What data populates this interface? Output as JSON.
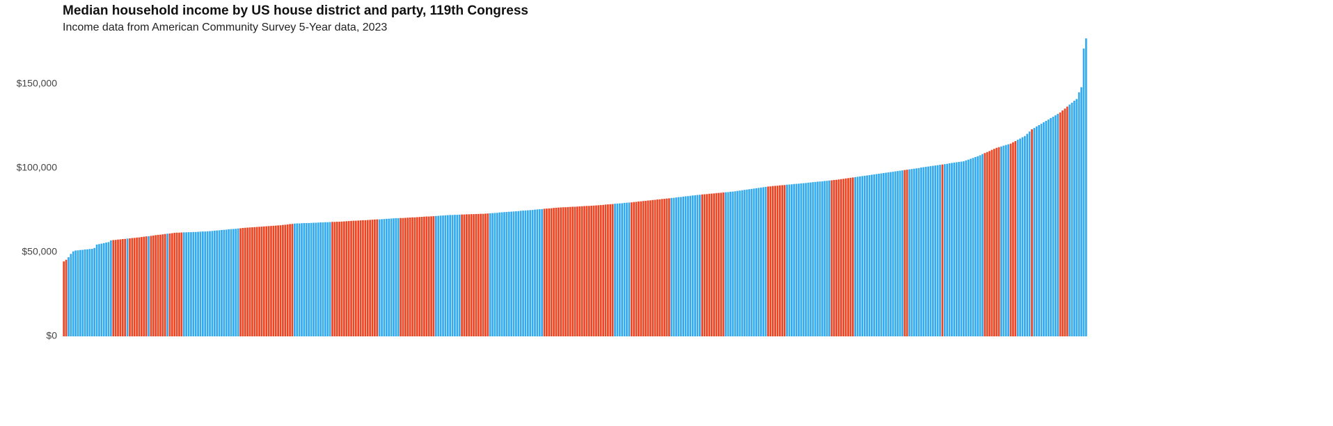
{
  "chart_data": {
    "type": "bar",
    "title": "Median household income by US house district and party, 119th Congress",
    "subtitle": "Income data from American Community Survey 5-Year data, 2023",
    "ylim": [
      0,
      180000
    ],
    "yticks": [
      {
        "value": 0,
        "label": "$0"
      },
      {
        "value": 50000,
        "label": "$50,000"
      },
      {
        "value": 100000,
        "label": "$100,000"
      },
      {
        "value": 150000,
        "label": "$150,000"
      }
    ],
    "grid": false,
    "values": [
      44500,
      45500,
      47000,
      49000,
      50500,
      51000,
      51100,
      51300,
      51400,
      51600,
      51700,
      51900,
      52000,
      52500,
      54500,
      54800,
      55100,
      55400,
      55700,
      56000,
      57000,
      57200,
      57300,
      57500,
      57600,
      57800,
      57900,
      58100,
      58200,
      58400,
      58500,
      58700,
      58800,
      59000,
      59200,
      59400,
      59500,
      59700,
      59900,
      60100,
      60300,
      60400,
      60600,
      60800,
      61000,
      61100,
      61300,
      61500,
      61600,
      61600,
      61700,
      61800,
      61800,
      61900,
      61900,
      62000,
      62000,
      62100,
      62200,
      62300,
      62300,
      62400,
      62500,
      62600,
      62800,
      62900,
      63000,
      63200,
      63300,
      63400,
      63600,
      63700,
      63800,
      63900,
      64100,
      64200,
      64400,
      64500,
      64600,
      64700,
      64800,
      64900,
      65000,
      65100,
      65200,
      65300,
      65400,
      65500,
      65600,
      65700,
      65800,
      65900,
      66000,
      66200,
      66300,
      66500,
      66700,
      66800,
      67000,
      67100,
      67100,
      67200,
      67300,
      67300,
      67300,
      67400,
      67500,
      67500,
      67600,
      67700,
      67700,
      67800,
      67800,
      67900,
      68000,
      68000,
      68100,
      68100,
      68200,
      68300,
      68400,
      68500,
      68600,
      68700,
      68700,
      68800,
      68900,
      69000,
      69000,
      69100,
      69200,
      69300,
      69400,
      69500,
      69500,
      69600,
      69700,
      69800,
      69900,
      70000,
      70100,
      70200,
      70200,
      70300,
      70300,
      70400,
      70500,
      70600,
      70700,
      70700,
      70800,
      70900,
      71000,
      71100,
      71200,
      71200,
      71300,
      71400,
      71500,
      71600,
      71700,
      71800,
      71900,
      72000,
      72100,
      72100,
      72200,
      72200,
      72300,
      72400,
      72400,
      72500,
      72500,
      72600,
      72600,
      72700,
      72700,
      72800,
      72800,
      72900,
      73000,
      73100,
      73200,
      73300,
      73400,
      73600,
      73700,
      73800,
      73900,
      74000,
      74100,
      74200,
      74300,
      74400,
      74600,
      74700,
      74800,
      74900,
      75000,
      75100,
      75300,
      75400,
      75500,
      75600,
      75800,
      75900,
      76000,
      76100,
      76300,
      76400,
      76500,
      76600,
      76700,
      76700,
      76800,
      76900,
      77000,
      77000,
      77100,
      77200,
      77300,
      77400,
      77500,
      77500,
      77600,
      77700,
      77800,
      77900,
      78000,
      78100,
      78300,
      78400,
      78500,
      78600,
      78800,
      78900,
      79000,
      79100,
      79300,
      79400,
      79500,
      79600,
      79800,
      79900,
      80100,
      80200,
      80400,
      80500,
      80700,
      80800,
      81000,
      81100,
      81300,
      81400,
      81600,
      81700,
      81900,
      82000,
      82200,
      82300,
      82500,
      82700,
      82800,
      83000,
      83200,
      83300,
      83500,
      83700,
      83800,
      84000,
      84100,
      84300,
      84400,
      84500,
      84700,
      84800,
      84900,
      85100,
      85200,
      85300,
      85500,
      85600,
      85700,
      85900,
      86000,
      86200,
      86400,
      86600,
      86800,
      87000,
      87200,
      87400,
      87600,
      87800,
      88000,
      88200,
      88400,
      88600,
      88800,
      89000,
      89100,
      89300,
      89400,
      89500,
      89700,
      89800,
      89900,
      90100,
      90200,
      90300,
      90500,
      90600,
      90700,
      90900,
      91000,
      91100,
      91300,
      91400,
      91600,
      91700,
      91900,
      92000,
      92100,
      92300,
      92400,
      92600,
      92700,
      92900,
      93000,
      93200,
      93400,
      93600,
      93800,
      94000,
      94200,
      94400,
      94600,
      94800,
      95000,
      95200,
      95400,
      95600,
      95800,
      96000,
      96200,
      96400,
      96600,
      96800,
      97000,
      97200,
      97400,
      97600,
      97800,
      98000,
      98200,
      98400,
      98600,
      98800,
      99000,
      99200,
      99400,
      99600,
      99800,
      100000,
      100300,
      100500,
      100700,
      100900,
      101100,
      101300,
      101500,
      101700,
      101900,
      102100,
      102300,
      102500,
      102800,
      103000,
      103200,
      103400,
      103600,
      103800,
      104000,
      104500,
      105000,
      105500,
      106000,
      106500,
      107000,
      107600,
      108300,
      108900,
      109500,
      110100,
      110800,
      111400,
      112000,
      112400,
      112800,
      113300,
      113700,
      114100,
      114500,
      115300,
      116000,
      116800,
      117500,
      118300,
      119000,
      120300,
      121700,
      123000,
      123800,
      124700,
      125500,
      126300,
      127200,
      128000,
      128800,
      129700,
      130500,
      131300,
      132200,
      133000,
      134200,
      135300,
      136500,
      137700,
      138800,
      140000,
      141000,
      145000,
      148000,
      171000,
      177000
    ],
    "colors": [
      "#e42",
      "#e42",
      "#3ae",
      "#3ae",
      "#3ae",
      "#3ae",
      "#3ae",
      "#3ae",
      "#3ae",
      "#3ae",
      "#3ae",
      "#3ae",
      "#3ae",
      "#3ae",
      "#3ae",
      "#3ae",
      "#3ae",
      "#3ae",
      "#3ae",
      "#3ae",
      "#3ae",
      "#e42",
      "#e42",
      "#e42",
      "#e42",
      "#e42",
      "#e42",
      "#3ae",
      "#e42",
      "#e42",
      "#e42",
      "#e42",
      "#e42",
      "#e42",
      "#e42",
      "#e42",
      "#3ae",
      "#e42",
      "#e42",
      "#e42",
      "#e42",
      "#e42",
      "#e42",
      "#e42",
      "#3ae",
      "#e42",
      "#e42",
      "#e42",
      "#e42",
      "#e42",
      "#e42",
      "#3ae",
      "#3ae",
      "#3ae",
      "#3ae",
      "#3ae",
      "#3ae",
      "#3ae",
      "#3ae",
      "#3ae",
      "#3ae",
      "#3ae",
      "#3ae",
      "#3ae",
      "#3ae",
      "#3ae",
      "#3ae",
      "#3ae",
      "#3ae",
      "#3ae",
      "#3ae",
      "#3ae",
      "#3ae",
      "#3ae",
      "#3ae",
      "#e42",
      "#e42",
      "#e42",
      "#e42",
      "#e42",
      "#e42",
      "#e42",
      "#e42",
      "#e42",
      "#e42",
      "#e42",
      "#e42",
      "#e42",
      "#e42",
      "#e42",
      "#e42",
      "#e42",
      "#e42",
      "#e42",
      "#e42",
      "#e42",
      "#e42",
      "#e42",
      "#3ae",
      "#3ae",
      "#3ae",
      "#3ae",
      "#3ae",
      "#3ae",
      "#3ae",
      "#3ae",
      "#3ae",
      "#3ae",
      "#3ae",
      "#3ae",
      "#3ae",
      "#3ae",
      "#3ae",
      "#3ae",
      "#e42",
      "#e42",
      "#e42",
      "#e42",
      "#e42",
      "#e42",
      "#e42",
      "#e42",
      "#e42",
      "#e42",
      "#e42",
      "#e42",
      "#e42",
      "#e42",
      "#e42",
      "#e42",
      "#e42",
      "#e42",
      "#e42",
      "#e42",
      "#3ae",
      "#3ae",
      "#3ae",
      "#3ae",
      "#3ae",
      "#3ae",
      "#3ae",
      "#3ae",
      "#3ae",
      "#e42",
      "#e42",
      "#e42",
      "#e42",
      "#e42",
      "#e42",
      "#e42",
      "#e42",
      "#e42",
      "#e42",
      "#e42",
      "#e42",
      "#e42",
      "#e42",
      "#e42",
      "#3ae",
      "#3ae",
      "#3ae",
      "#3ae",
      "#3ae",
      "#3ae",
      "#3ae",
      "#3ae",
      "#3ae",
      "#3ae",
      "#3ae",
      "#e42",
      "#e42",
      "#e42",
      "#e42",
      "#e42",
      "#e42",
      "#e42",
      "#e42",
      "#e42",
      "#e42",
      "#e42",
      "#e42",
      "#3ae",
      "#3ae",
      "#3ae",
      "#3ae",
      "#3ae",
      "#3ae",
      "#3ae",
      "#3ae",
      "#3ae",
      "#3ae",
      "#3ae",
      "#3ae",
      "#3ae",
      "#3ae",
      "#3ae",
      "#3ae",
      "#3ae",
      "#3ae",
      "#3ae",
      "#3ae",
      "#3ae",
      "#3ae",
      "#3ae",
      "#e42",
      "#e42",
      "#e42",
      "#e42",
      "#e42",
      "#e42",
      "#e42",
      "#e42",
      "#e42",
      "#e42",
      "#e42",
      "#e42",
      "#e42",
      "#e42",
      "#e42",
      "#e42",
      "#e42",
      "#e42",
      "#e42",
      "#e42",
      "#e42",
      "#e42",
      "#e42",
      "#e42",
      "#e42",
      "#e42",
      "#e42",
      "#e42",
      "#e42",
      "#e42",
      "#3ae",
      "#3ae",
      "#3ae",
      "#3ae",
      "#3ae",
      "#3ae",
      "#3ae",
      "#e42",
      "#e42",
      "#e42",
      "#e42",
      "#e42",
      "#e42",
      "#e42",
      "#e42",
      "#e42",
      "#e42",
      "#e42",
      "#e42",
      "#e42",
      "#e42",
      "#e42",
      "#e42",
      "#e42",
      "#3ae",
      "#3ae",
      "#3ae",
      "#3ae",
      "#3ae",
      "#3ae",
      "#3ae",
      "#3ae",
      "#3ae",
      "#3ae",
      "#3ae",
      "#3ae",
      "#3ae",
      "#e42",
      "#e42",
      "#e42",
      "#e42",
      "#e42",
      "#e42",
      "#e42",
      "#e42",
      "#e42",
      "#e42",
      "#3ae",
      "#3ae",
      "#3ae",
      "#3ae",
      "#3ae",
      "#3ae",
      "#3ae",
      "#3ae",
      "#3ae",
      "#3ae",
      "#3ae",
      "#3ae",
      "#3ae",
      "#3ae",
      "#3ae",
      "#3ae",
      "#3ae",
      "#3ae",
      "#e42",
      "#e42",
      "#e42",
      "#e42",
      "#e42",
      "#e42",
      "#e42",
      "#e42",
      "#3ae",
      "#3ae",
      "#3ae",
      "#3ae",
      "#3ae",
      "#3ae",
      "#3ae",
      "#3ae",
      "#3ae",
      "#3ae",
      "#3ae",
      "#3ae",
      "#3ae",
      "#3ae",
      "#3ae",
      "#3ae",
      "#3ae",
      "#3ae",
      "#3ae",
      "#e42",
      "#e42",
      "#e42",
      "#e42",
      "#e42",
      "#e42",
      "#e42",
      "#e42",
      "#e42",
      "#e42",
      "#3ae",
      "#3ae",
      "#3ae",
      "#3ae",
      "#3ae",
      "#3ae",
      "#3ae",
      "#3ae",
      "#3ae",
      "#3ae",
      "#3ae",
      "#3ae",
      "#3ae",
      "#3ae",
      "#3ae",
      "#3ae",
      "#3ae",
      "#3ae",
      "#3ae",
      "#3ae",
      "#3ae",
      "#e42",
      "#e42",
      "#3ae",
      "#3ae",
      "#3ae",
      "#3ae",
      "#3ae",
      "#3ae",
      "#3ae",
      "#3ae",
      "#3ae",
      "#3ae",
      "#3ae",
      "#3ae",
      "#3ae",
      "#3ae",
      "#e42",
      "#3ae",
      "#3ae",
      "#3ae",
      "#3ae",
      "#3ae",
      "#3ae",
      "#3ae",
      "#3ae",
      "#3ae",
      "#3ae",
      "#3ae",
      "#3ae",
      "#3ae",
      "#3ae",
      "#3ae",
      "#3ae",
      "#3ae",
      "#e42",
      "#e42",
      "#e42",
      "#e42",
      "#e42",
      "#e42",
      "#e42",
      "#3ae",
      "#3ae",
      "#3ae",
      "#3ae",
      "#e42",
      "#e42",
      "#e42",
      "#3ae",
      "#3ae",
      "#3ae",
      "#3ae",
      "#3ae",
      "#3ae",
      "#e42",
      "#3ae",
      "#3ae",
      "#3ae",
      "#3ae",
      "#3ae",
      "#3ae",
      "#3ae",
      "#3ae",
      "#3ae",
      "#3ae",
      "#3ae",
      "#e42",
      "#e42",
      "#e42",
      "#e42",
      "#3ae",
      "#3ae",
      "#3ae",
      "#3ae",
      "#3ae",
      "#3ae",
      "#3ae",
      "#3ae"
    ]
  }
}
